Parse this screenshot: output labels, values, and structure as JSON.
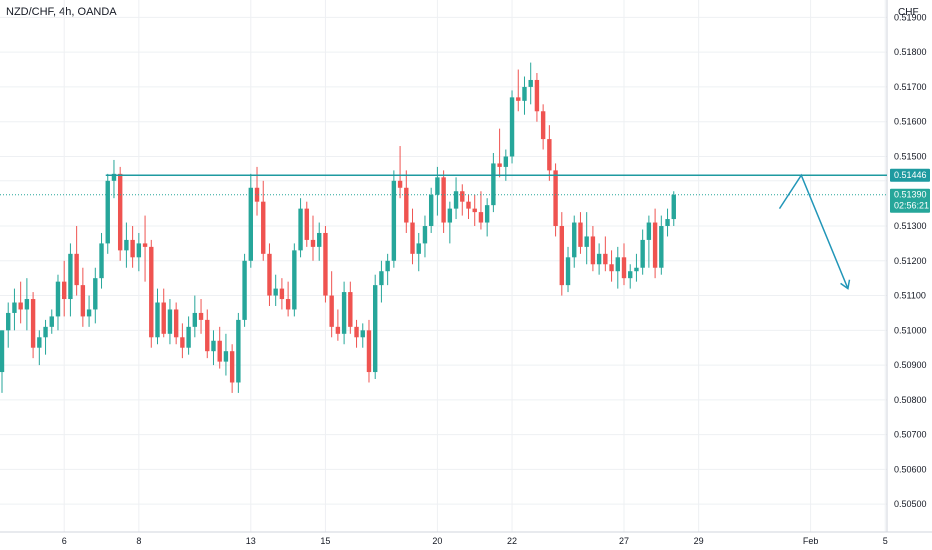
{
  "header": {
    "title": "NZD/CHF, 4h, OANDA",
    "currency": "CHF"
  },
  "price_badges": {
    "level_label": "0.51446",
    "last_label": "0.51390",
    "countdown": "02:56:21"
  },
  "colors": {
    "up": "#26a69a",
    "down": "#ef5350",
    "level_line": "#1e9aa0",
    "grid": "#eef0f3",
    "arrow": "#2196b8",
    "axis_border": "#d1d4dc"
  },
  "chart_data": {
    "type": "candlestick",
    "title": "NZD/CHF, 4h, OANDA",
    "ylabel": "CHF",
    "ylim": [
      0.5042,
      0.5195
    ],
    "y_ticks": [
      0.519,
      0.518,
      0.517,
      0.516,
      0.515,
      0.5143,
      0.513,
      0.512,
      0.511,
      0.51,
      0.509,
      0.508,
      0.507,
      0.506,
      0.505
    ],
    "y_tick_labels": [
      "0.51900",
      "0.51800",
      "0.51700",
      "0.51600",
      "0.51500",
      "",
      "0.51300",
      "0.51200",
      "0.51100",
      "0.51000",
      "0.50900",
      "0.50800",
      "0.50700",
      "0.50600",
      "0.50500"
    ],
    "x_ticks": [
      {
        "label": "6",
        "bar": 10
      },
      {
        "label": "8",
        "bar": 22
      },
      {
        "label": "13",
        "bar": 40
      },
      {
        "label": "15",
        "bar": 52
      },
      {
        "label": "20",
        "bar": 70
      },
      {
        "label": "22",
        "bar": 82
      },
      {
        "label": "27",
        "bar": 100
      },
      {
        "label": "29",
        "bar": 112
      },
      {
        "label": "Feb",
        "bar": 130
      },
      {
        "label": "5",
        "bar": 142
      }
    ],
    "resistance_level": 0.51446,
    "last_price": 0.5139,
    "projection": {
      "start_bar": 125,
      "peak_bar": 128.5,
      "end_bar": 136
    },
    "candles": [
      [
        0.5088,
        0.51,
        0.5082,
        0.51
      ],
      [
        0.51,
        0.5108,
        0.5095,
        0.5105
      ],
      [
        0.5105,
        0.5112,
        0.51,
        0.5108
      ],
      [
        0.5108,
        0.5114,
        0.5102,
        0.5106
      ],
      [
        0.5106,
        0.5115,
        0.51,
        0.5109
      ],
      [
        0.5109,
        0.5111,
        0.5092,
        0.5095
      ],
      [
        0.5095,
        0.51,
        0.509,
        0.5098
      ],
      [
        0.5098,
        0.5103,
        0.5093,
        0.5101
      ],
      [
        0.5101,
        0.5106,
        0.5099,
        0.5104
      ],
      [
        0.5104,
        0.5116,
        0.51,
        0.5114
      ],
      [
        0.5114,
        0.512,
        0.5104,
        0.5109
      ],
      [
        0.5109,
        0.5125,
        0.5104,
        0.5122
      ],
      [
        0.5122,
        0.513,
        0.511,
        0.5113
      ],
      [
        0.5113,
        0.5118,
        0.5101,
        0.5104
      ],
      [
        0.5104,
        0.511,
        0.5101,
        0.5106
      ],
      [
        0.5106,
        0.5118,
        0.5102,
        0.5115
      ],
      [
        0.5115,
        0.5128,
        0.5112,
        0.5125
      ],
      [
        0.5125,
        0.5145,
        0.5122,
        0.5143
      ],
      [
        0.5143,
        0.5149,
        0.5138,
        0.5145
      ],
      [
        0.5145,
        0.5147,
        0.512,
        0.5123
      ],
      [
        0.5123,
        0.5131,
        0.5118,
        0.5126
      ],
      [
        0.5126,
        0.513,
        0.5118,
        0.5121
      ],
      [
        0.5121,
        0.5128,
        0.5117,
        0.5125
      ],
      [
        0.5125,
        0.5133,
        0.5114,
        0.5124
      ],
      [
        0.5124,
        0.5126,
        0.5095,
        0.5098
      ],
      [
        0.5098,
        0.5112,
        0.5096,
        0.5108
      ],
      [
        0.5108,
        0.5112,
        0.5098,
        0.5099
      ],
      [
        0.5099,
        0.5109,
        0.5096,
        0.5106
      ],
      [
        0.5106,
        0.5108,
        0.5096,
        0.5098
      ],
      [
        0.5098,
        0.5102,
        0.5092,
        0.5095
      ],
      [
        0.5095,
        0.5104,
        0.5093,
        0.5101
      ],
      [
        0.5101,
        0.511,
        0.5098,
        0.5105
      ],
      [
        0.5105,
        0.5109,
        0.5099,
        0.5103
      ],
      [
        0.5103,
        0.5106,
        0.5092,
        0.5094
      ],
      [
        0.5094,
        0.51,
        0.509,
        0.5097
      ],
      [
        0.5097,
        0.5101,
        0.5089,
        0.5091
      ],
      [
        0.5091,
        0.5099,
        0.5087,
        0.5094
      ],
      [
        0.5094,
        0.5096,
        0.5082,
        0.5085
      ],
      [
        0.5085,
        0.5105,
        0.5082,
        0.5103
      ],
      [
        0.5103,
        0.5122,
        0.5101,
        0.512
      ],
      [
        0.512,
        0.5145,
        0.5118,
        0.5141
      ],
      [
        0.5141,
        0.5147,
        0.5133,
        0.5137
      ],
      [
        0.5137,
        0.5143,
        0.512,
        0.5122
      ],
      [
        0.5122,
        0.5125,
        0.5107,
        0.511
      ],
      [
        0.511,
        0.5116,
        0.5107,
        0.5112
      ],
      [
        0.5112,
        0.5115,
        0.5106,
        0.5109
      ],
      [
        0.5109,
        0.5114,
        0.5104,
        0.5106
      ],
      [
        0.5106,
        0.5125,
        0.5104,
        0.5123
      ],
      [
        0.5123,
        0.5138,
        0.5121,
        0.5135
      ],
      [
        0.5135,
        0.5137,
        0.5124,
        0.5126
      ],
      [
        0.5126,
        0.5133,
        0.512,
        0.5124
      ],
      [
        0.5124,
        0.5131,
        0.512,
        0.5128
      ],
      [
        0.5128,
        0.513,
        0.5108,
        0.511
      ],
      [
        0.511,
        0.5117,
        0.5098,
        0.5101
      ],
      [
        0.5101,
        0.5106,
        0.5097,
        0.5099
      ],
      [
        0.5099,
        0.5114,
        0.5096,
        0.5111
      ],
      [
        0.5111,
        0.5114,
        0.5099,
        0.5101
      ],
      [
        0.5101,
        0.5103,
        0.5095,
        0.5098
      ],
      [
        0.5098,
        0.5102,
        0.5095,
        0.51
      ],
      [
        0.51,
        0.5103,
        0.5085,
        0.5088
      ],
      [
        0.5088,
        0.5116,
        0.5086,
        0.5113
      ],
      [
        0.5113,
        0.512,
        0.5108,
        0.5117
      ],
      [
        0.5117,
        0.5122,
        0.5113,
        0.512
      ],
      [
        0.512,
        0.5146,
        0.5118,
        0.5143
      ],
      [
        0.5143,
        0.5153,
        0.5138,
        0.5141
      ],
      [
        0.5141,
        0.5146,
        0.5128,
        0.5131
      ],
      [
        0.5131,
        0.5135,
        0.5119,
        0.5122
      ],
      [
        0.5122,
        0.5128,
        0.5117,
        0.5125
      ],
      [
        0.5125,
        0.5133,
        0.5121,
        0.513
      ],
      [
        0.513,
        0.5141,
        0.5128,
        0.5139
      ],
      [
        0.5139,
        0.5147,
        0.5133,
        0.5144
      ],
      [
        0.5144,
        0.5146,
        0.5128,
        0.5131
      ],
      [
        0.5131,
        0.5137,
        0.5125,
        0.5135
      ],
      [
        0.5135,
        0.5144,
        0.5132,
        0.514
      ],
      [
        0.514,
        0.5142,
        0.5133,
        0.5137
      ],
      [
        0.5137,
        0.5139,
        0.5132,
        0.5135
      ],
      [
        0.5135,
        0.5139,
        0.513,
        0.5134
      ],
      [
        0.5134,
        0.514,
        0.5129,
        0.5131
      ],
      [
        0.5131,
        0.5138,
        0.5127,
        0.5136
      ],
      [
        0.5136,
        0.5151,
        0.5134,
        0.5148
      ],
      [
        0.5148,
        0.5158,
        0.5144,
        0.5147
      ],
      [
        0.5147,
        0.5152,
        0.5143,
        0.515
      ],
      [
        0.515,
        0.5169,
        0.5148,
        0.5167
      ],
      [
        0.5167,
        0.5175,
        0.5163,
        0.5166
      ],
      [
        0.5166,
        0.5173,
        0.5162,
        0.517
      ],
      [
        0.517,
        0.5177,
        0.5165,
        0.5172
      ],
      [
        0.5172,
        0.5174,
        0.516,
        0.5163
      ],
      [
        0.5163,
        0.5165,
        0.5152,
        0.5155
      ],
      [
        0.5155,
        0.5159,
        0.5143,
        0.5146
      ],
      [
        0.5146,
        0.5148,
        0.5127,
        0.513
      ],
      [
        0.513,
        0.5134,
        0.511,
        0.5113
      ],
      [
        0.5113,
        0.5124,
        0.5111,
        0.5121
      ],
      [
        0.5121,
        0.5133,
        0.5118,
        0.5131
      ],
      [
        0.5131,
        0.5134,
        0.5122,
        0.5124
      ],
      [
        0.5124,
        0.5134,
        0.5119,
        0.5127
      ],
      [
        0.5127,
        0.513,
        0.5117,
        0.5119
      ],
      [
        0.5119,
        0.5125,
        0.5116,
        0.5122
      ],
      [
        0.5122,
        0.5127,
        0.5117,
        0.5119
      ],
      [
        0.5119,
        0.5123,
        0.5114,
        0.5117
      ],
      [
        0.5117,
        0.5124,
        0.5112,
        0.5121
      ],
      [
        0.5121,
        0.5125,
        0.5113,
        0.5115
      ],
      [
        0.5115,
        0.5119,
        0.5112,
        0.5117
      ],
      [
        0.5117,
        0.5122,
        0.5114,
        0.5118
      ],
      [
        0.5118,
        0.5129,
        0.5116,
        0.5126
      ],
      [
        0.5126,
        0.5133,
        0.5118,
        0.5131
      ],
      [
        0.5131,
        0.5135,
        0.5115,
        0.5118
      ],
      [
        0.5118,
        0.5133,
        0.5116,
        0.513
      ],
      [
        0.513,
        0.5135,
        0.5127,
        0.5132
      ],
      [
        0.5132,
        0.514,
        0.513,
        0.5139
      ]
    ]
  }
}
